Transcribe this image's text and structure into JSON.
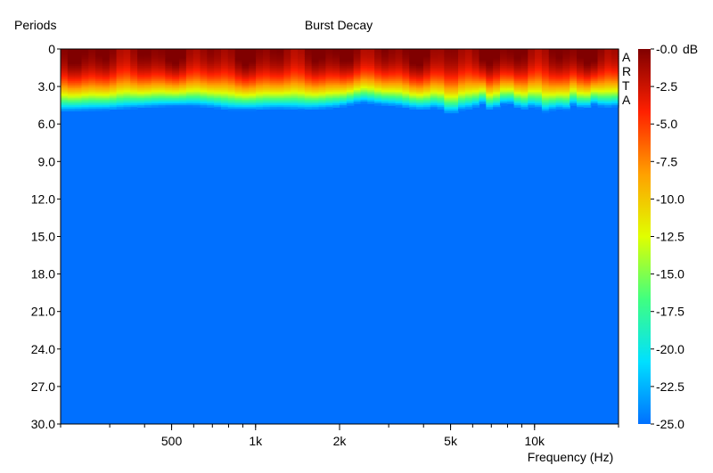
{
  "chart_data": {
    "type": "heatmap",
    "title": "Burst Decay",
    "ylabel": "Periods",
    "xlabel": "Frequency (Hz)",
    "watermark": "ARTA",
    "x_scale": "log",
    "xlim": [
      200,
      20000
    ],
    "ylim": [
      0,
      30
    ],
    "y_ticks": [
      "0",
      "3.0",
      "6.0",
      "9.0",
      "12.0",
      "15.0",
      "18.0",
      "21.0",
      "24.0",
      "27.0",
      "30.0"
    ],
    "x_ticks": [
      {
        "label": "500",
        "value": 500
      },
      {
        "label": "1k",
        "value": 1000
      },
      {
        "label": "2k",
        "value": 2000
      },
      {
        "label": "5k",
        "value": 5000
      },
      {
        "label": "10k",
        "value": 10000
      }
    ],
    "colorbar": {
      "unit": "dB",
      "range": [
        -25,
        0
      ],
      "ticks": [
        "-0.0",
        "-2.5",
        "-5.0",
        "-7.5",
        "-10.0",
        "-12.5",
        "-15.0",
        "-17.5",
        "-20.0",
        "-22.5",
        "-25.0"
      ],
      "colors": [
        "#0070ff",
        "#00e0ff",
        "#40ff80",
        "#e0ff00",
        "#ffa000",
        "#ff2000",
        "#800000"
      ]
    },
    "decay_floor_periods": {
      "frequency_hz": [
        200,
        300,
        400,
        500,
        600,
        700,
        800,
        1000,
        1200,
        1500,
        1800,
        2000,
        2400,
        2800,
        3200,
        3600,
        4000,
        4500,
        5000,
        5500,
        6000,
        6500,
        7000,
        7500,
        8000,
        9000,
        10000,
        11000,
        12000,
        13000,
        14000,
        15000,
        16000,
        17000,
        18000,
        20000
      ],
      "periods": [
        5.0,
        4.9,
        4.7,
        4.6,
        4.6,
        4.7,
        4.9,
        4.9,
        4.8,
        4.9,
        4.8,
        4.7,
        4.3,
        4.5,
        4.6,
        4.8,
        4.9,
        4.7,
        5.3,
        4.9,
        4.8,
        4.4,
        5.0,
        4.6,
        4.3,
        4.9,
        4.6,
        5.1,
        4.8,
        4.9,
        4.4,
        5.0,
        4.4,
        4.6,
        4.7,
        4.6
      ]
    },
    "grid": false,
    "legend": "colorbar-right"
  }
}
